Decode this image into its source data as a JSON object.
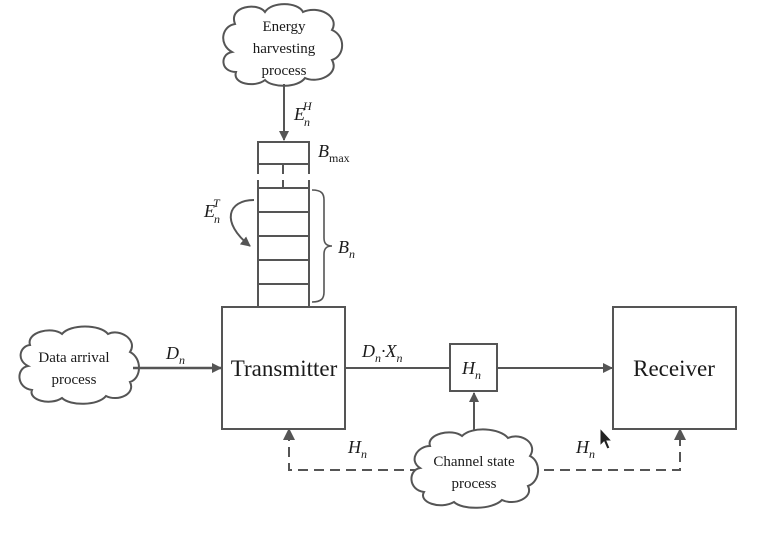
{
  "blocks": {
    "transmitter": "Transmitter",
    "receiver": "Receiver",
    "channel_block": {
      "main": "H",
      "sub": "n"
    }
  },
  "clouds": {
    "energy": [
      "Energy",
      "harvesting",
      "process"
    ],
    "data": [
      "Data arrival",
      "process"
    ],
    "channel": [
      "Channel state",
      "process"
    ]
  },
  "labels": {
    "harvested_energy": {
      "main": "E",
      "sub": "n",
      "sup": "H"
    },
    "battery_max": {
      "main": "B",
      "sub": "max"
    },
    "transmit_energy": {
      "main": "E",
      "sub": "n",
      "sup": "T"
    },
    "battery_level": {
      "main": "B",
      "sub": "n"
    },
    "data_arrival": {
      "main": "D",
      "sub": "n"
    },
    "tx_data": {
      "d": "D",
      "d_sub": "n",
      "dot": "·",
      "x": "X",
      "x_sub": "n"
    },
    "csi_tx": {
      "main": "H",
      "sub": "n"
    },
    "csi_rx": {
      "main": "H",
      "sub": "n"
    }
  }
}
